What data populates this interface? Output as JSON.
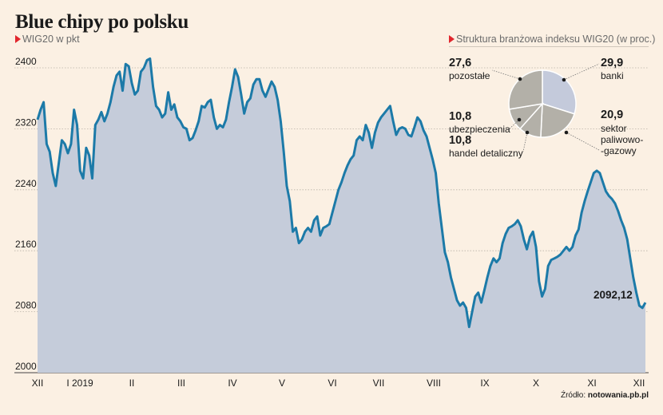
{
  "title": "Blue chipy po polsku",
  "subtitle_left": "WIG20 w pkt",
  "subtitle_right": "Struktura branżowa indeksu WIG20 (w proc.)",
  "source_prefix": "Źródło: ",
  "source_name": "notowania.pb.pl",
  "colors": {
    "line": "#1c7aa8",
    "area": "#c5ccda",
    "background": "#fbf0e3",
    "pie_main": "#c4cadb",
    "pie_other": "#b3b0a8",
    "marker": "#e1262d"
  },
  "chart_data": [
    {
      "type": "area",
      "ylim": [
        2000,
        2420
      ],
      "yticks": [
        "2400",
        "2320",
        "2240",
        "2160",
        "2080",
        "2000"
      ],
      "xticks": [
        "XII",
        "I 2019",
        "II",
        "III",
        "IV",
        "V",
        "VI",
        "VII",
        "VIII",
        "IX",
        "X",
        "XI",
        "XII"
      ],
      "last_value_label": "2092,12",
      "grid": "dotted horizontal",
      "values": [
        2332,
        2345,
        2355,
        2300,
        2290,
        2262,
        2245,
        2275,
        2305,
        2300,
        2288,
        2300,
        2345,
        2325,
        2265,
        2255,
        2295,
        2285,
        2255,
        2325,
        2332,
        2342,
        2330,
        2340,
        2355,
        2375,
        2390,
        2395,
        2370,
        2405,
        2402,
        2380,
        2365,
        2370,
        2395,
        2400,
        2410,
        2412,
        2375,
        2350,
        2345,
        2335,
        2340,
        2368,
        2345,
        2352,
        2335,
        2330,
        2322,
        2320,
        2305,
        2308,
        2318,
        2330,
        2350,
        2348,
        2355,
        2358,
        2335,
        2320,
        2325,
        2322,
        2332,
        2355,
        2375,
        2398,
        2388,
        2365,
        2340,
        2355,
        2360,
        2378,
        2385,
        2385,
        2370,
        2362,
        2372,
        2382,
        2375,
        2358,
        2330,
        2290,
        2245,
        2225,
        2185,
        2190,
        2170,
        2175,
        2185,
        2190,
        2185,
        2200,
        2205,
        2180,
        2190,
        2192,
        2195,
        2210,
        2225,
        2240,
        2250,
        2262,
        2272,
        2280,
        2285,
        2305,
        2310,
        2305,
        2325,
        2315,
        2295,
        2315,
        2328,
        2335,
        2340,
        2345,
        2350,
        2330,
        2312,
        2320,
        2322,
        2320,
        2312,
        2310,
        2322,
        2335,
        2330,
        2318,
        2310,
        2295,
        2280,
        2262,
        2222,
        2190,
        2158,
        2145,
        2125,
        2110,
        2095,
        2088,
        2092,
        2085,
        2060,
        2080,
        2100,
        2105,
        2092,
        2108,
        2125,
        2140,
        2150,
        2145,
        2150,
        2170,
        2182,
        2190,
        2192,
        2195,
        2200,
        2192,
        2175,
        2162,
        2178,
        2185,
        2165,
        2120,
        2100,
        2110,
        2140,
        2148,
        2150,
        2152,
        2155,
        2160,
        2165,
        2160,
        2165,
        2180,
        2188,
        2210,
        2225,
        2238,
        2250,
        2262,
        2265,
        2262,
        2250,
        2238,
        2232,
        2228,
        2222,
        2212,
        2200,
        2190,
        2175,
        2150,
        2125,
        2105,
        2088,
        2085,
        2092
      ]
    },
    {
      "type": "pie",
      "slices": [
        {
          "label": "banki",
          "value": 29.9,
          "display": "29,9"
        },
        {
          "label": "sektor paliwowo-gazowy",
          "label_lines": [
            "sektor",
            "paliwowo-",
            "-gazowy"
          ],
          "value": 20.9,
          "display": "20,9"
        },
        {
          "label": "handel detaliczny",
          "value": 10.8,
          "display": "10,8"
        },
        {
          "label": "ubezpieczenia",
          "value": 10.8,
          "display": "10,8"
        },
        {
          "label": "pozostałe",
          "value": 27.6,
          "display": "27,6"
        }
      ]
    }
  ]
}
